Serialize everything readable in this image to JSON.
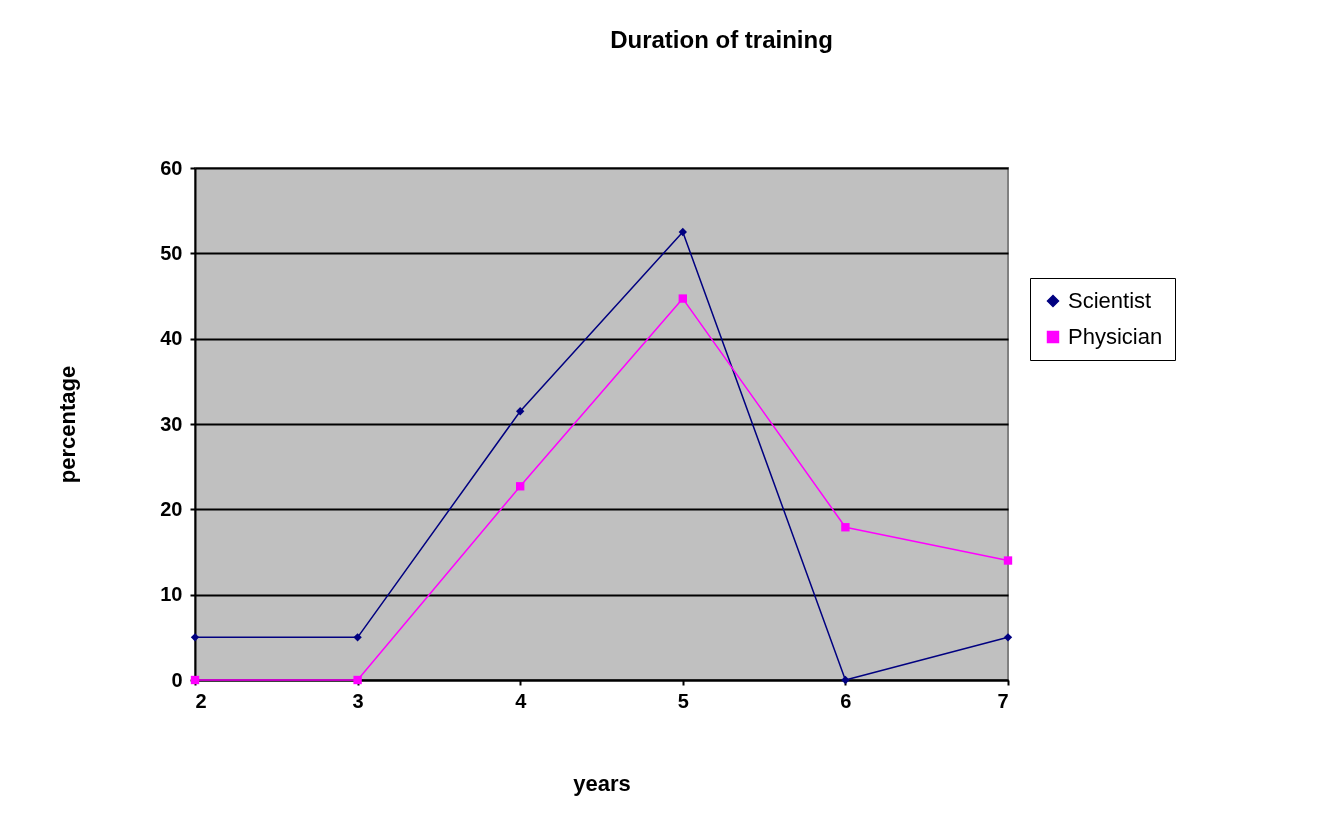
{
  "chart_data": {
    "type": "line",
    "title": "Duration of training",
    "xlabel": "years",
    "ylabel": "percentage",
    "x": [
      2,
      3,
      4,
      5,
      6,
      7
    ],
    "xlim": [
      2,
      7
    ],
    "xticks": [
      2,
      3,
      4,
      5,
      6,
      7
    ],
    "ylim": [
      0,
      60
    ],
    "yticks": [
      0,
      10,
      20,
      30,
      40,
      50,
      60
    ],
    "series": [
      {
        "name": "Scientist",
        "color": "#000080",
        "marker": "diamond",
        "values": [
          5,
          5,
          31.5,
          52.5,
          0,
          5
        ]
      },
      {
        "name": "Physician",
        "color": "#ff00ff",
        "marker": "square",
        "values": [
          0,
          0,
          22.7,
          44.7,
          17.9,
          14
        ]
      }
    ],
    "grid": "y",
    "legend": "right"
  }
}
